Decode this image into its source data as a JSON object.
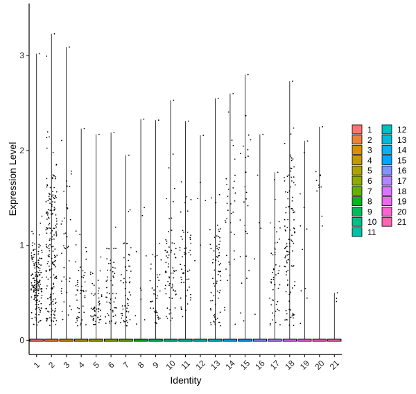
{
  "chart_data": {
    "type": "scatter",
    "subtype": "violin-jitter",
    "xlabel": "Identity",
    "ylabel": "Expression Level",
    "ylim": [
      -0.15,
      3.55
    ],
    "yticks": [
      0,
      1,
      2,
      3
    ],
    "grid": false,
    "legend_position": "right",
    "categories": [
      "1",
      "2",
      "3",
      "4",
      "5",
      "6",
      "7",
      "8",
      "9",
      "10",
      "11",
      "12",
      "13",
      "14",
      "15",
      "16",
      "17",
      "18",
      "19",
      "20",
      "21"
    ],
    "colors": [
      "#F8766D",
      "#EC8239",
      "#DB8E00",
      "#C59900",
      "#AEA200",
      "#8FAA00",
      "#64B200",
      "#00B81B",
      "#00BD5C",
      "#00C085",
      "#00C1A7",
      "#00BFC4",
      "#00BADE",
      "#00B2F3",
      "#00A6FF",
      "#7F96FF",
      "#B385FF",
      "#D874FD",
      "#EF67EB",
      "#FD61D3",
      "#FF63B6"
    ],
    "series": [
      {
        "name": "1",
        "max": 3.02,
        "n": 160,
        "center": 0.62,
        "spread": 0.26
      },
      {
        "name": "2",
        "max": 3.23,
        "n": 190,
        "center": 0.9,
        "spread": 0.55
      },
      {
        "name": "3",
        "max": 3.09,
        "n": 40,
        "center": 0.9,
        "spread": 0.55
      },
      {
        "name": "4",
        "max": 2.23,
        "n": 50,
        "center": 0.45,
        "spread": 0.3
      },
      {
        "name": "5",
        "max": 2.17,
        "n": 55,
        "center": 0.35,
        "spread": 0.25
      },
      {
        "name": "6",
        "max": 2.19,
        "n": 55,
        "center": 0.45,
        "spread": 0.35
      },
      {
        "name": "7",
        "max": 1.95,
        "n": 55,
        "center": 0.5,
        "spread": 0.35
      },
      {
        "name": "8",
        "max": 2.33,
        "n": 10,
        "center": 0.9,
        "spread": 0.6
      },
      {
        "name": "9",
        "max": 2.32,
        "n": 40,
        "center": 0.45,
        "spread": 0.3
      },
      {
        "name": "10",
        "max": 2.53,
        "n": 70,
        "center": 0.7,
        "spread": 0.4
      },
      {
        "name": "11",
        "max": 2.31,
        "n": 55,
        "center": 0.7,
        "spread": 0.4
      },
      {
        "name": "12",
        "max": 2.16,
        "n": 6,
        "center": 1.5,
        "spread": 0.5
      },
      {
        "name": "13",
        "max": 2.55,
        "n": 70,
        "center": 0.75,
        "spread": 0.45
      },
      {
        "name": "14",
        "max": 2.6,
        "n": 35,
        "center": 1.3,
        "spread": 0.6
      },
      {
        "name": "15",
        "max": 2.8,
        "n": 25,
        "center": 1.4,
        "spread": 0.6
      },
      {
        "name": "16",
        "max": 2.17,
        "n": 5,
        "center": 1.0,
        "spread": 0.6
      },
      {
        "name": "17",
        "max": 1.77,
        "n": 50,
        "center": 0.75,
        "spread": 0.4
      },
      {
        "name": "18",
        "max": 2.73,
        "n": 110,
        "center": 0.95,
        "spread": 0.55
      },
      {
        "name": "19",
        "max": 2.1,
        "n": 10,
        "center": 0.7,
        "spread": 0.6
      },
      {
        "name": "20",
        "max": 2.25,
        "n": 10,
        "center": 1.5,
        "spread": 0.5
      },
      {
        "name": "21",
        "max": 0.5,
        "n": 2,
        "center": 0.4,
        "spread": 0.05
      }
    ]
  }
}
